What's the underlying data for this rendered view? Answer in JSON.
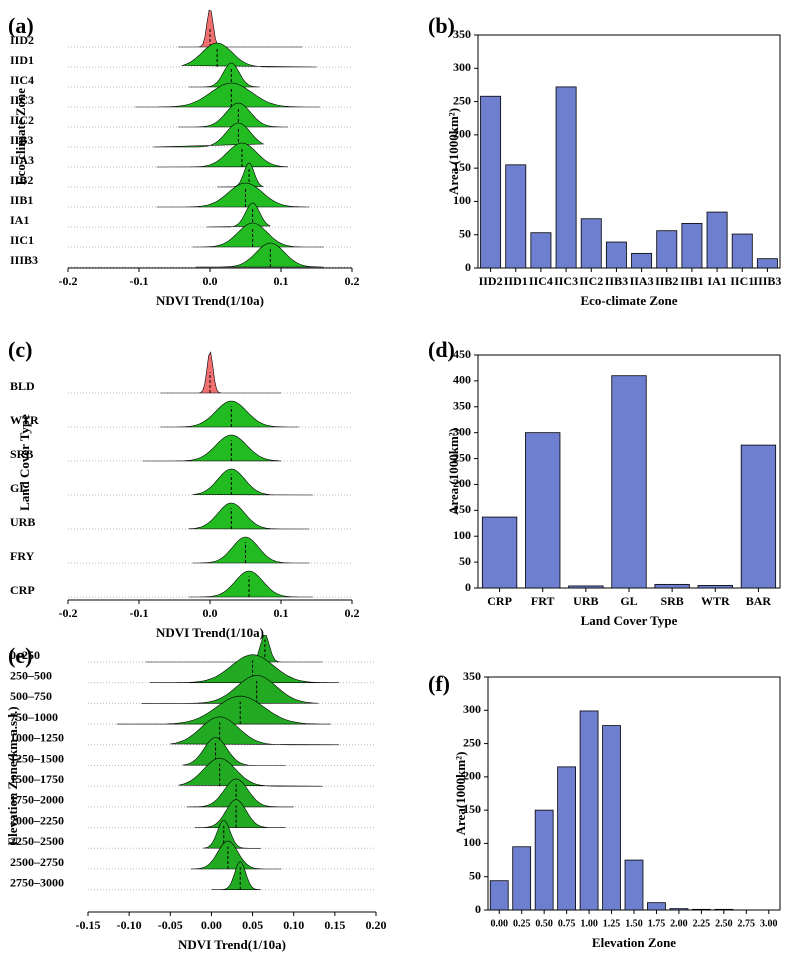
{
  "chart_data": [
    {
      "type": "ridgeline",
      "panel_label": "(a)",
      "xlabel": "NDVI Trend(1/10a)",
      "ylabel": "Eco-climate Zone",
      "categories": [
        "IID2",
        "IID1",
        "IIC4",
        "IIC3",
        "IIC2",
        "IIB3",
        "IIA3",
        "IIB2",
        "IIB1",
        "IA1",
        "IIC1",
        "IIIB3"
      ],
      "values": [
        0.0,
        0.01,
        0.03,
        0.03,
        0.04,
        0.04,
        0.045,
        0.055,
        0.05,
        0.06,
        0.06,
        0.085
      ],
      "mins": [
        -0.045,
        -0.04,
        -0.03,
        -0.105,
        -0.045,
        -0.08,
        -0.075,
        0.01,
        -0.075,
        -0.005,
        -0.025,
        -0.02
      ],
      "maxs": [
        0.13,
        0.15,
        0.07,
        0.155,
        0.11,
        0.075,
        0.11,
        0.075,
        0.14,
        0.085,
        0.16,
        0.16
      ],
      "colors": [
        "#f07070",
        "#22bb22",
        "#22bb22",
        "#22bb22",
        "#22bb22",
        "#22bb22",
        "#22bb22",
        "#22bb22",
        "#22bb22",
        "#22bb22",
        "#22bb22",
        "#22bb22"
      ],
      "xlim": [
        -0.2,
        0.2
      ],
      "xticks": [
        -0.2,
        -0.1,
        {
          "value": 0,
          "label": "0.0"
        },
        0.1,
        0.2
      ]
    },
    {
      "type": "bar",
      "panel_label": "(b)",
      "xlabel": "Eco-climate Zone",
      "ylabel": "Area (1000km²)",
      "categories": [
        "IID2",
        "IID1",
        "IIC4",
        "IIC3",
        "IIC2",
        "IIB3",
        "IIA3",
        "IIB2",
        "IIB1",
        "IA1",
        "IIC1",
        "IIIB3"
      ],
      "values": [
        258,
        155,
        53,
        272,
        74,
        39,
        22,
        56,
        67,
        84,
        51,
        14
      ],
      "color": "#6f7fcf",
      "ylim": [
        0,
        350
      ],
      "yticks": [
        0,
        50,
        100,
        150,
        200,
        250,
        300,
        350
      ]
    },
    {
      "type": "ridgeline",
      "panel_label": "(c)",
      "xlabel": "NDVI Trend(1/10a)",
      "ylabel": "Land Cover Type",
      "categories": [
        "BLD",
        "WTR",
        "SRB",
        "GL",
        "URB",
        "FRY",
        "CRP"
      ],
      "values": [
        0.0,
        0.03,
        0.03,
        0.03,
        0.03,
        0.05,
        0.055
      ],
      "mins": [
        -0.07,
        -0.07,
        -0.095,
        -0.025,
        -0.03,
        -0.025,
        -0.03
      ],
      "maxs": [
        0.1,
        0.125,
        0.1,
        0.145,
        0.14,
        0.14,
        0.145
      ],
      "colors": [
        "#f07070",
        "#22bb22",
        "#22bb22",
        "#22bb22",
        "#22bb22",
        "#22bb22",
        "#22bb22"
      ],
      "xlim": [
        -0.2,
        0.2
      ],
      "xticks": [
        -0.2,
        -0.1,
        {
          "value": 0,
          "label": "0.0"
        },
        0.1,
        0.2
      ]
    },
    {
      "type": "bar",
      "panel_label": "(d)",
      "xlabel": "Land Cover Type",
      "ylabel": "Area (1000km²)",
      "categories": [
        "CRP",
        "FRT",
        "URB",
        "GL",
        "SRB",
        "WTR",
        "BAR"
      ],
      "values": [
        137,
        300,
        4,
        410,
        7,
        5,
        276
      ],
      "color": "#6f7fcf",
      "ylim": [
        0,
        450
      ],
      "yticks": [
        0,
        50,
        100,
        150,
        200,
        250,
        300,
        350,
        400,
        450
      ]
    },
    {
      "type": "ridgeline",
      "panel_label": "(e)",
      "xlabel": "NDVI Trend(1/10a)",
      "ylabel": "Elevation Zone(km a.s.l.)",
      "categories": [
        "0–250",
        "250–500",
        "500–750",
        "750–1000",
        "1000–1250",
        "1250–1500",
        "1500–1750",
        "1750–2000",
        "2000–2250",
        "2250–2500",
        "2500–2750",
        "2750–3000"
      ],
      "values": [
        0.065,
        0.05,
        0.055,
        0.035,
        0.01,
        0.005,
        0.01,
        0.03,
        0.03,
        0.015,
        0.02,
        0.035
      ],
      "mins": [
        -0.08,
        -0.075,
        -0.085,
        -0.115,
        -0.05,
        -0.035,
        -0.04,
        -0.03,
        -0.02,
        -0.01,
        -0.025,
        0.0
      ],
      "maxs": [
        0.135,
        0.155,
        0.13,
        0.145,
        0.155,
        0.09,
        0.135,
        0.1,
        0.09,
        0.06,
        0.085,
        0.06
      ],
      "colors": [
        "#22aa22",
        "#22aa22",
        "#22aa22",
        "#22aa22",
        "#22aa22",
        "#22aa22",
        "#22aa22",
        "#22aa22",
        "#22aa22",
        "#22aa22",
        "#22aa22",
        "#22aa22"
      ],
      "xlim": [
        -0.15,
        0.2
      ],
      "xticks": [
        -0.15,
        {
          "value": -0.1,
          "label": "-0.10"
        },
        -0.05,
        {
          "value": 0,
          "label": "0.00"
        },
        0.05,
        {
          "value": 0.1,
          "label": "0.10"
        },
        0.15,
        {
          "value": 0.2,
          "label": "0.20"
        }
      ]
    },
    {
      "type": "bar",
      "panel_label": "(f)",
      "xlabel": "Elevation Zone",
      "ylabel": "Area(1000km²)",
      "categories": [
        "0.00",
        "0.25",
        "0.50",
        "0.75",
        "1.00",
        "1.25",
        "1.50",
        "1.75",
        "2.00",
        "2.25",
        "2.50",
        "2.75",
        "3.00"
      ],
      "values": [
        44,
        95,
        150,
        215,
        299,
        277,
        75,
        11,
        2,
        1,
        1,
        0,
        0
      ],
      "color": "#6f7fcf",
      "ylim": [
        0,
        350
      ],
      "yticks": [
        0,
        50,
        100,
        150,
        200,
        250,
        300,
        350
      ]
    }
  ]
}
